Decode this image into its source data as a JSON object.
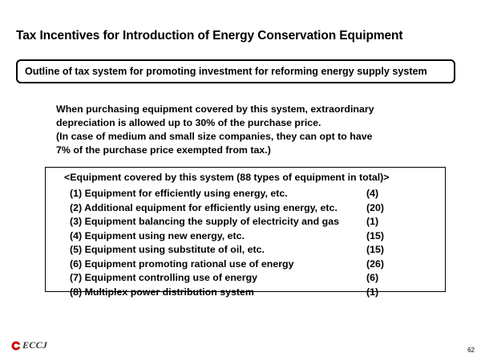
{
  "slide": {
    "title": "Tax Incentives for Introduction of Energy Conservation Equipment",
    "outline": "Outline of tax system for promoting investment for reforming energy supply system",
    "intro_lines": [
      "When purchasing equipment covered by this system, extraordinary",
      "depreciation is allowed up to 30% of the purchase price.",
      "(In case of medium and small size companies, they can opt to have",
      "7% of the purchase price exempted from tax.)"
    ],
    "equipment": {
      "header": "<Equipment covered by this system (88 types of equipment in total)>",
      "items": [
        {
          "label": "(1) Equipment for efficiently using energy, etc.",
          "count": "(4)"
        },
        {
          "label": "(2) Additional equipment for efficiently using energy, etc.",
          "count": "(20)"
        },
        {
          "label": "(3) Equipment balancing the supply of electricity and gas",
          "count": "(1)"
        },
        {
          "label": "(4) Equipment using new energy, etc.",
          "count": "(15)"
        },
        {
          "label": "(5) Equipment using substitute of oil, etc.",
          "count": "(15)"
        },
        {
          "label": "(6) Equipment promoting rational use of energy",
          "count": "(26)"
        },
        {
          "label": "(7) Equipment controlling use of energy",
          "count": "(6)"
        },
        {
          "label": "(8) Multiplex power distribution system",
          "count": "(1)"
        }
      ]
    },
    "logo_text": "ECCJ",
    "logo_color": "#cc0000",
    "page_number": "62"
  }
}
